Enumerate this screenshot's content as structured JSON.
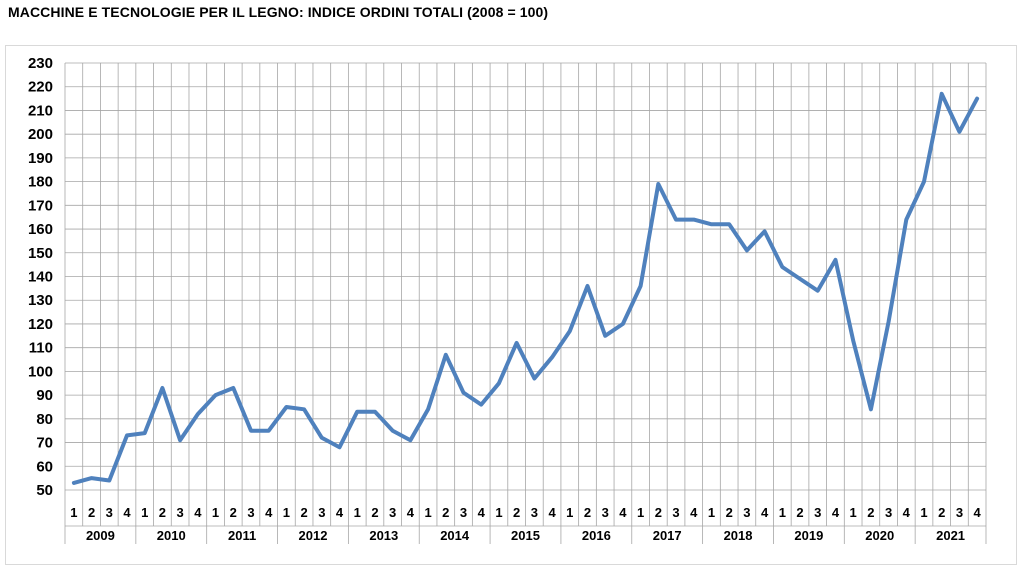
{
  "chart_data": {
    "type": "line",
    "title": "MACCHINE E TECNOLOGIE PER IL LEGNO: INDICE ORDINI TOTALI (2008 = 100)",
    "xlabel": "",
    "ylabel": "",
    "ylim": [
      50,
      230
    ],
    "yticks": [
      50,
      60,
      70,
      80,
      90,
      100,
      110,
      120,
      130,
      140,
      150,
      160,
      170,
      180,
      190,
      200,
      210,
      220,
      230
    ],
    "grid": true,
    "years": [
      "2009",
      "2010",
      "2011",
      "2012",
      "2013",
      "2014",
      "2015",
      "2016",
      "2017",
      "2018",
      "2019",
      "2020",
      "2021"
    ],
    "quarters": [
      "1",
      "2",
      "3",
      "4"
    ],
    "series": [
      {
        "color": "#4f81bd",
        "values": [
          53,
          55,
          54,
          73,
          74,
          93,
          71,
          82,
          90,
          93,
          75,
          75,
          85,
          84,
          72,
          68,
          83,
          83,
          75,
          71,
          84,
          107,
          91,
          86,
          95,
          112,
          97,
          106,
          117,
          136,
          115,
          120,
          136,
          179,
          164,
          164,
          162,
          162,
          151,
          159,
          144,
          139,
          134,
          147,
          113,
          84,
          121,
          164,
          180,
          217,
          201,
          215
        ]
      }
    ]
  }
}
